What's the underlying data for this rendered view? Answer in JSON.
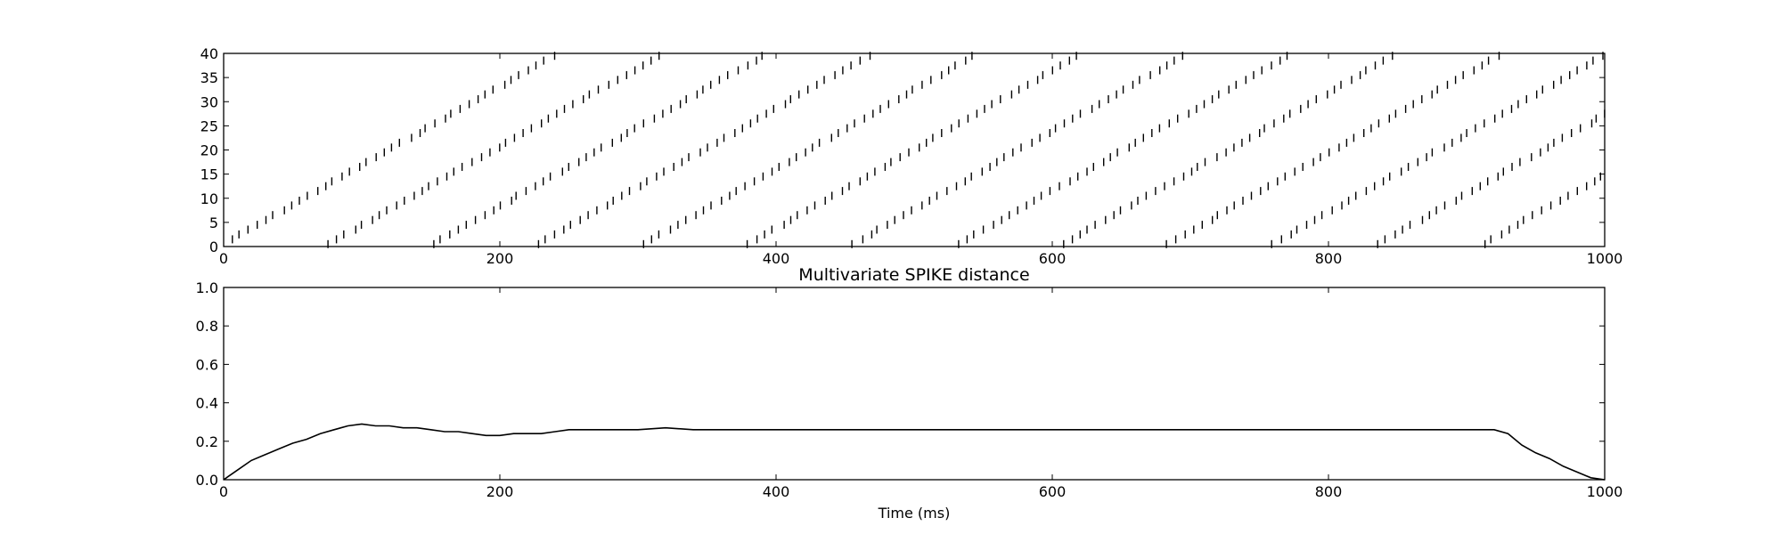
{
  "chart_data": [
    {
      "type": "scatter",
      "subtype": "spike-raster",
      "title": "",
      "xlabel": "",
      "ylabel": "",
      "xlim": [
        0,
        1000
      ],
      "ylim": [
        0,
        40
      ],
      "xticks": [
        0,
        200,
        400,
        600,
        800,
        1000
      ],
      "yticks": [
        0,
        5,
        10,
        15,
        20,
        25,
        30,
        35,
        40
      ],
      "grid": false,
      "n_spike_trains": 40,
      "pattern": {
        "wave_starts_ms": [
          0,
          76,
          152,
          228,
          304,
          380,
          456,
          532,
          608,
          684,
          760,
          836,
          912
        ],
        "wave_duration_ms": 245,
        "description": "repeated diagonal spike waves sweeping from train 0 to train 40"
      }
    },
    {
      "type": "line",
      "title": "Multivariate SPIKE distance",
      "xlabel": "Time (ms)",
      "ylabel": "",
      "xlim": [
        0,
        1000
      ],
      "ylim": [
        0,
        1.0
      ],
      "xticks": [
        0,
        200,
        400,
        600,
        800,
        1000
      ],
      "yticks": [
        0.0,
        0.2,
        0.4,
        0.6,
        0.8,
        1.0
      ],
      "grid": false,
      "series": [
        {
          "x": [
            0,
            10,
            20,
            30,
            40,
            50,
            60,
            70,
            80,
            90,
            100,
            110,
            120,
            130,
            140,
            150,
            160,
            170,
            180,
            190,
            200,
            210,
            220,
            230,
            240,
            250,
            260,
            280,
            300,
            320,
            340,
            360,
            380,
            400,
            450,
            500,
            550,
            600,
            650,
            700,
            750,
            800,
            850,
            900,
            920,
            930,
            940,
            950,
            960,
            970,
            980,
            990,
            1000
          ],
          "y": [
            0.0,
            0.05,
            0.1,
            0.13,
            0.16,
            0.19,
            0.21,
            0.24,
            0.26,
            0.28,
            0.29,
            0.28,
            0.28,
            0.27,
            0.27,
            0.26,
            0.25,
            0.25,
            0.24,
            0.23,
            0.23,
            0.24,
            0.24,
            0.24,
            0.25,
            0.26,
            0.26,
            0.26,
            0.26,
            0.27,
            0.26,
            0.26,
            0.26,
            0.26,
            0.26,
            0.26,
            0.26,
            0.26,
            0.26,
            0.26,
            0.26,
            0.26,
            0.26,
            0.26,
            0.26,
            0.24,
            0.18,
            0.14,
            0.11,
            0.07,
            0.04,
            0.01,
            0.0
          ]
        }
      ]
    }
  ]
}
